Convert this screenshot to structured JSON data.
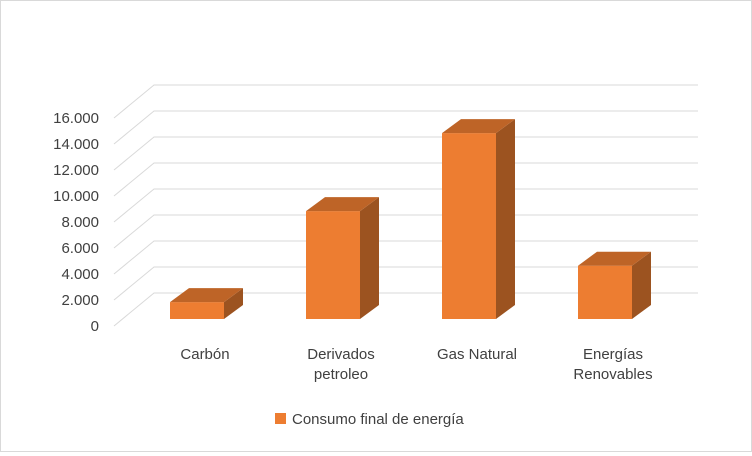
{
  "chart_data": {
    "type": "bar",
    "style": "3d-column",
    "categories": [
      [
        "Carbón"
      ],
      [
        "Derivados",
        "petroleo"
      ],
      [
        "Gas Natural"
      ],
      [
        "Energías",
        "Renovables"
      ]
    ],
    "series": [
      {
        "name": "Consumo final de energía",
        "color": "#ED7D31",
        "values": [
          1300,
          8300,
          14300,
          4100
        ]
      }
    ],
    "ylim": [
      0,
      16000
    ],
    "yticks": [
      "0",
      "2.000",
      "4.000",
      "6.000",
      "8.000",
      "10.000",
      "12.000",
      "14.000",
      "16.000"
    ],
    "grid": true,
    "legend": "bottom"
  }
}
